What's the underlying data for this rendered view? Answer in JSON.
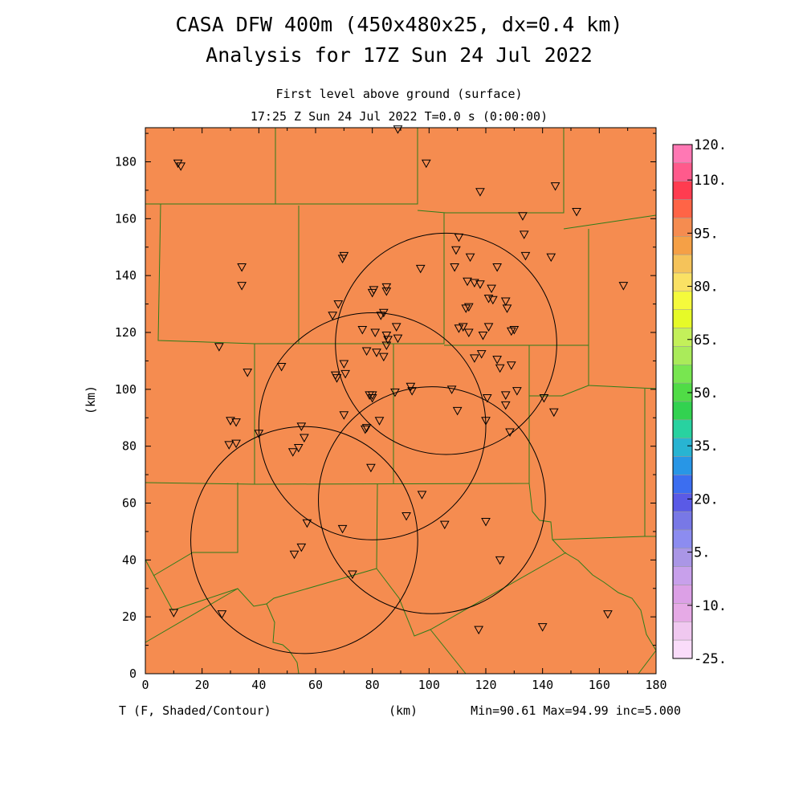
{
  "header": {
    "title_line1": "CASA DFW 400m (450x480x25, dx=0.4 km)",
    "title_line2": "Analysis for 17Z Sun 24 Jul 2022",
    "level": "First level above ground (surface)",
    "valid_time": "17:25 Z Sun 24 Jul 2022   T=0.0 s (0:00:00)"
  },
  "footer": {
    "variable": "T (F, Shaded/Contour)",
    "x_unit": "(km)",
    "stats": "Min=90.61 Max=94.99 inc=5.000"
  },
  "chart_data": {
    "type": "heatmap",
    "title": "CASA DFW 400m (450x480x25, dx=0.4 km)",
    "subtitle": "Analysis for 17Z Sun 24 Jul 2022",
    "xlabel": "(km)",
    "ylabel": "(km)",
    "xlim": [
      0,
      180
    ],
    "ylim": [
      0,
      192
    ],
    "xticks": [
      "0",
      "20",
      "40",
      "60",
      "80",
      "100",
      "120",
      "140",
      "160",
      "180"
    ],
    "yticks": [
      "0",
      "20",
      "40",
      "60",
      "80",
      "100",
      "120",
      "140",
      "160",
      "180"
    ],
    "variable": "T (F)",
    "min": 90.61,
    "max": 94.99,
    "inc": 5.0,
    "field_color": "#f58c50",
    "county_color": "#2e7d1a",
    "colorbar": {
      "labels": [
        "120.",
        "110.",
        "95.",
        "80.",
        "65.",
        "50.",
        "35.",
        "20.",
        "5.",
        "-10.",
        "-25."
      ],
      "colors": [
        "#ff78b4",
        "#ff5a8c",
        "#ff3c50",
        "#ff6446",
        "#f58c50",
        "#f5a046",
        "#f5c35a",
        "#fae164",
        "#f5fa3c",
        "#e6fa28",
        "#c3f05a",
        "#aaeb5a",
        "#78e650",
        "#50dc46",
        "#32d250",
        "#28d2a0",
        "#28b4d2",
        "#2896e6",
        "#3c6ef0",
        "#5a5ae6",
        "#7878e6",
        "#8c8cf0",
        "#aa96e6",
        "#c8a0eb",
        "#dca0e6",
        "#e6aae6",
        "#f0c8f0",
        "#fadcfa"
      ],
      "label_values": [
        120,
        110,
        95,
        80,
        65,
        50,
        35,
        20,
        5,
        -10,
        -25
      ]
    },
    "radar_rings": [
      {
        "center": [
          106,
          116
        ],
        "radius": 39
      },
      {
        "center": [
          80,
          87
        ],
        "radius": 40
      },
      {
        "center": [
          101,
          61
        ],
        "radius": 40
      },
      {
        "center": [
          56,
          47
        ],
        "radius": 40
      }
    ],
    "stations": [
      [
        11.5,
        179.5
      ],
      [
        12.5,
        178.5
      ],
      [
        34,
        143
      ],
      [
        34,
        136.5
      ],
      [
        70,
        147
      ],
      [
        69.5,
        146
      ],
      [
        89,
        191.5
      ],
      [
        99,
        179.5
      ],
      [
        118,
        169.5
      ],
      [
        144.5,
        171.5
      ],
      [
        152,
        162.5
      ],
      [
        133,
        161
      ],
      [
        133.5,
        154.5
      ],
      [
        110.5,
        153.5
      ],
      [
        134,
        147
      ],
      [
        143,
        146.5
      ],
      [
        109.5,
        149
      ],
      [
        114.5,
        146.5
      ],
      [
        109,
        143
      ],
      [
        124,
        143
      ],
      [
        97,
        142.5
      ],
      [
        168.5,
        136.5
      ],
      [
        80.5,
        135
      ],
      [
        80,
        134
      ],
      [
        85,
        136
      ],
      [
        85,
        134.5
      ],
      [
        122,
        135.5
      ],
      [
        121,
        132
      ],
      [
        122.5,
        131.5
      ],
      [
        116,
        137.5
      ],
      [
        118,
        137
      ],
      [
        113.5,
        138
      ],
      [
        127,
        131
      ],
      [
        127.5,
        128.5
      ],
      [
        114,
        129
      ],
      [
        113,
        128.5
      ],
      [
        84,
        127
      ],
      [
        83,
        126
      ],
      [
        68,
        130
      ],
      [
        66,
        126
      ],
      [
        76.5,
        121
      ],
      [
        81,
        120
      ],
      [
        88.5,
        122
      ],
      [
        85,
        119
      ],
      [
        85.5,
        117.5
      ],
      [
        89,
        118
      ],
      [
        112,
        122
      ],
      [
        114,
        120
      ],
      [
        119,
        119
      ],
      [
        121,
        122
      ],
      [
        130,
        121
      ],
      [
        129,
        120.5
      ],
      [
        110.5,
        121.5
      ],
      [
        26,
        115
      ],
      [
        36,
        106
      ],
      [
        48,
        108
      ],
      [
        78,
        113.5
      ],
      [
        81.5,
        113
      ],
      [
        84,
        111.5
      ],
      [
        85,
        115.5
      ],
      [
        67.5,
        104
      ],
      [
        67,
        105
      ],
      [
        70.5,
        105.5
      ],
      [
        70,
        109
      ],
      [
        116,
        111
      ],
      [
        118.5,
        112.5
      ],
      [
        124,
        110.5
      ],
      [
        125,
        107.5
      ],
      [
        129,
        108.5
      ],
      [
        79,
        98
      ],
      [
        80,
        98
      ],
      [
        80,
        97
      ],
      [
        88,
        99
      ],
      [
        93.5,
        101
      ],
      [
        94,
        99.5
      ],
      [
        108,
        100
      ],
      [
        120.5,
        97
      ],
      [
        127,
        98
      ],
      [
        127,
        94.5
      ],
      [
        131,
        99.5
      ],
      [
        140.5,
        97
      ],
      [
        144,
        92
      ],
      [
        110,
        92.5
      ],
      [
        120,
        89
      ],
      [
        128.5,
        85
      ],
      [
        70,
        91
      ],
      [
        30,
        89
      ],
      [
        32,
        88.5
      ],
      [
        29.5,
        80.5
      ],
      [
        32,
        81
      ],
      [
        40,
        84.5
      ],
      [
        55,
        87
      ],
      [
        56,
        83
      ],
      [
        54,
        79.5
      ],
      [
        52,
        78
      ],
      [
        77.5,
        86
      ],
      [
        78,
        86.5
      ],
      [
        82.5,
        89
      ],
      [
        79.5,
        72.5
      ],
      [
        97.5,
        63
      ],
      [
        92,
        55.5
      ],
      [
        120,
        53.5
      ],
      [
        105.5,
        52.5
      ],
      [
        69.5,
        51
      ],
      [
        57,
        53
      ],
      [
        55,
        44.5
      ],
      [
        52.5,
        42
      ],
      [
        73,
        35
      ],
      [
        125,
        40
      ],
      [
        10,
        21.5
      ],
      [
        27,
        21
      ],
      [
        117.5,
        15.5
      ],
      [
        140,
        16.5
      ],
      [
        163,
        21
      ]
    ]
  }
}
